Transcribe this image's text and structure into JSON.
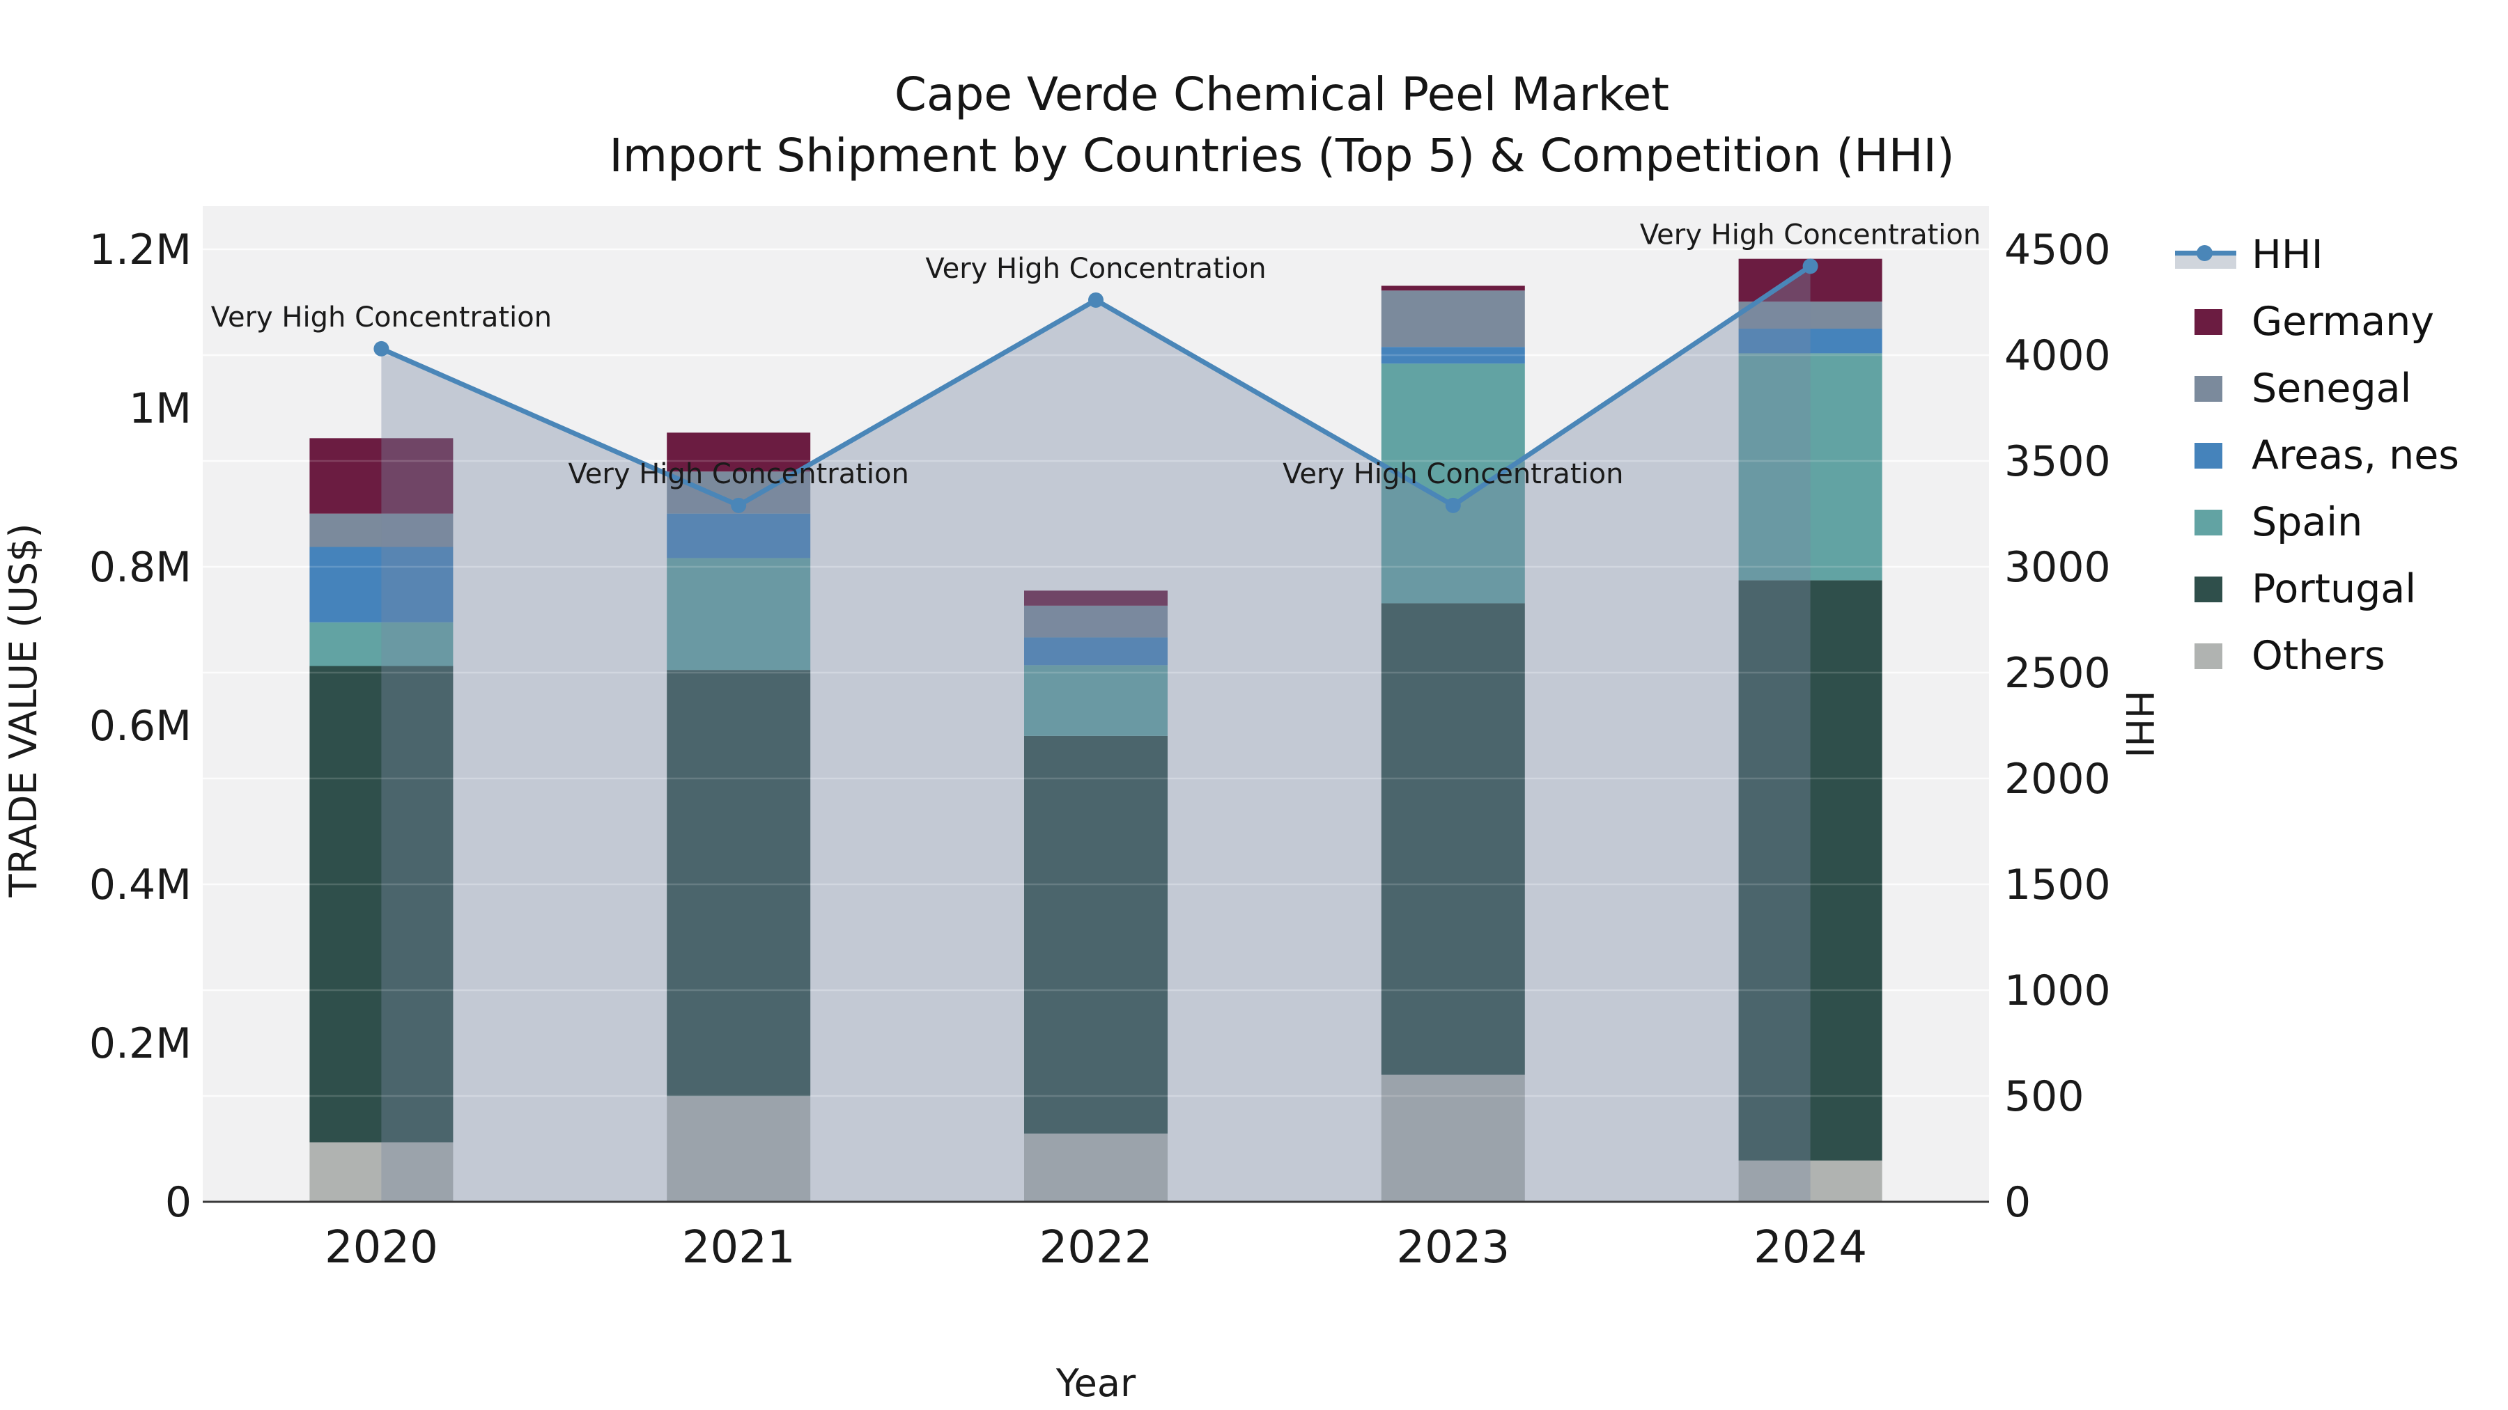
{
  "title": {
    "line1": "Cape Verde Chemical Peel Market",
    "line2": "Import Shipment by Countries (Top 5) & Competition (HHI)"
  },
  "chart_data": {
    "type": "bar",
    "subtype": "stacked-bars-with-line-overlay",
    "categories": [
      "2020",
      "2021",
      "2022",
      "2023",
      "2024"
    ],
    "xlabel": "Year",
    "ylabel_left": "TRADE VALUE (US$)",
    "ylabel_right": "HHI",
    "ylim_left": [
      0,
      1200000
    ],
    "ylim_right": [
      0,
      4500
    ],
    "y_ticks_left": [
      {
        "label": "0",
        "value": 0
      },
      {
        "label": "0.2M",
        "value": 200000
      },
      {
        "label": "0.4M",
        "value": 400000
      },
      {
        "label": "0.6M",
        "value": 600000
      },
      {
        "label": "0.8M",
        "value": 800000
      },
      {
        "label": "1M",
        "value": 1000000
      },
      {
        "label": "1.2M",
        "value": 1200000
      }
    ],
    "y_ticks_right": [
      {
        "label": "0",
        "value": 0
      },
      {
        "label": "500",
        "value": 500
      },
      {
        "label": "1000",
        "value": 1000
      },
      {
        "label": "1500",
        "value": 1500
      },
      {
        "label": "2000",
        "value": 2000
      },
      {
        "label": "2500",
        "value": 2500
      },
      {
        "label": "3000",
        "value": 3000
      },
      {
        "label": "3500",
        "value": 3500
      },
      {
        "label": "4000",
        "value": 4000
      },
      {
        "label": "4500",
        "value": 4500
      }
    ],
    "bar_series": [
      {
        "name": "Others",
        "color": "#b0b3b1",
        "values": [
          75000,
          133000,
          86000,
          160000,
          52000
        ]
      },
      {
        "name": "Portugal",
        "color": "#2f4f4b",
        "values": [
          600000,
          537000,
          501000,
          594000,
          731000
        ]
      },
      {
        "name": "Spain",
        "color": "#62a3a3",
        "values": [
          55000,
          141000,
          89000,
          302000,
          286000
        ]
      },
      {
        "name": "Areas, nes",
        "color": "#4583bb",
        "values": [
          95000,
          56000,
          35000,
          21000,
          31000
        ]
      },
      {
        "name": "Senegal",
        "color": "#7b8a9c",
        "values": [
          42000,
          53000,
          40000,
          71000,
          34000
        ]
      },
      {
        "name": "Germany",
        "color": "#6b1c41",
        "values": [
          95000,
          49000,
          19000,
          6000,
          54000
        ]
      }
    ],
    "bar_totals": [
      962000,
      969000,
      770000,
      1154000,
      1188000
    ],
    "line_series": {
      "name": "HHI",
      "color": "#4a86b8",
      "area_fill": "rgba(120,136,164,0.38)",
      "values": [
        4030,
        3290,
        4260,
        3290,
        4420
      ],
      "point_labels": [
        "Very High Concentration",
        "Very High Concentration",
        "Very High Concentration",
        "Very High Concentration",
        "Very High Concentration"
      ]
    },
    "legend": [
      {
        "label": "HHI",
        "type": "line",
        "color": "#4a86b8"
      },
      {
        "label": "Germany",
        "type": "patch",
        "color": "#6b1c41"
      },
      {
        "label": "Senegal",
        "type": "patch",
        "color": "#7b8a9c"
      },
      {
        "label": "Areas, nes",
        "type": "patch",
        "color": "#4583bb"
      },
      {
        "label": "Spain",
        "type": "patch",
        "color": "#62a3a3"
      },
      {
        "label": "Portugal",
        "type": "patch",
        "color": "#2f4f4b"
      },
      {
        "label": "Others",
        "type": "patch",
        "color": "#b0b3b1"
      }
    ],
    "colors": {
      "plot_background": "#f1f1f2",
      "gridline": "#ffffff",
      "axis_line": "#3a3a3a",
      "text": "#1a1a1a"
    },
    "grid": "horizontal, at right-axis ticks every 500 HHI",
    "legend_position": "right-outside-top"
  }
}
